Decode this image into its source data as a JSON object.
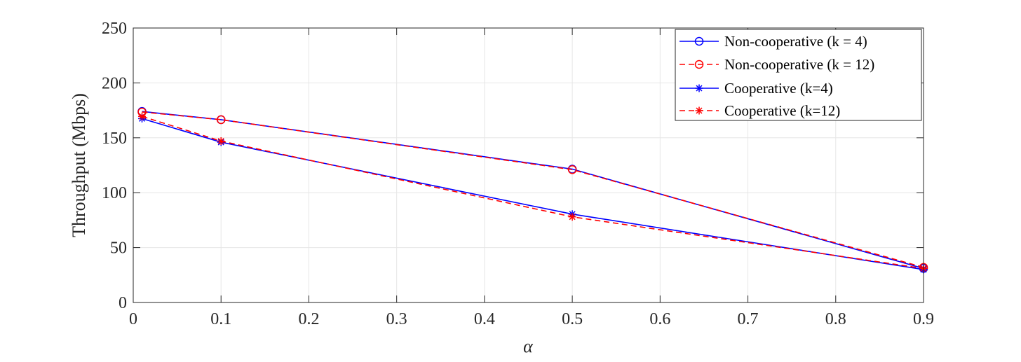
{
  "chart_data": {
    "type": "line",
    "xlabel": "α",
    "ylabel": "Throughput (Mbps)",
    "xlim": [
      0,
      0.9
    ],
    "ylim": [
      0,
      250
    ],
    "xticks": [
      "0",
      "0.1",
      "0.2",
      "0.3",
      "0.4",
      "0.5",
      "0.6",
      "0.7",
      "0.8",
      "0.9"
    ],
    "yticks": [
      "0",
      "50",
      "100",
      "150",
      "200",
      "250"
    ],
    "grid": true,
    "legend_position": "top-right",
    "x": [
      0.01,
      0.1,
      0.5,
      0.9
    ],
    "series": [
      {
        "name": "Non-cooperative (k = 4)",
        "values": [
          174,
          166.5,
          121.5,
          31
        ],
        "color": "#0000ff",
        "dash": "solid",
        "marker": "circle"
      },
      {
        "name": "Non-cooperative (k = 12)",
        "values": [
          173.5,
          166.5,
          121,
          32
        ],
        "color": "#ff0000",
        "dash": "dashed",
        "marker": "circle"
      },
      {
        "name": "Cooperative (k=4)",
        "values": [
          167.5,
          146,
          80.5,
          30
        ],
        "color": "#0000ff",
        "dash": "solid",
        "marker": "asterisk"
      },
      {
        "name": "Cooperative (k=12)",
        "values": [
          169.5,
          147,
          78,
          31
        ],
        "color": "#ff0000",
        "dash": "dashed",
        "marker": "asterisk"
      }
    ]
  }
}
